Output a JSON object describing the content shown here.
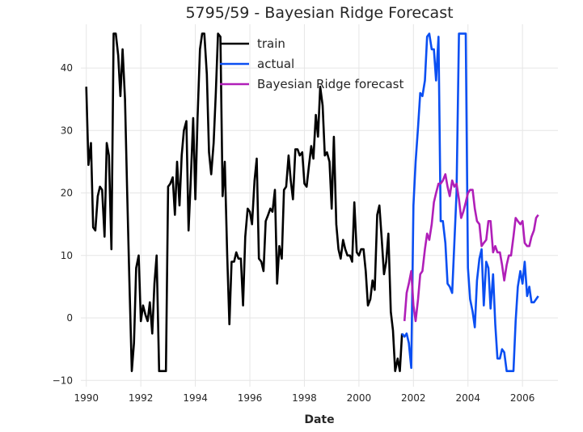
{
  "chart_data": {
    "type": "line",
    "title": "5795/59 - Bayesian Ridge Forecast",
    "xlabel": "Date",
    "ylabel": "",
    "xlim": [
      1989.8,
      2007.3
    ],
    "ylim": [
      -11,
      47
    ],
    "xticks": [
      1990,
      1992,
      1994,
      1996,
      1998,
      2000,
      2002,
      2004,
      2006
    ],
    "yticks": [
      -10,
      0,
      10,
      20,
      30,
      40
    ],
    "grid": true,
    "legend_position": "top-center",
    "series": [
      {
        "name": "train",
        "color": "#000000",
        "points": [
          [
            1990.0,
            37
          ],
          [
            1990.08,
            24.5
          ],
          [
            1990.17,
            28
          ],
          [
            1990.25,
            14.5
          ],
          [
            1990.33,
            14
          ],
          [
            1990.42,
            19.5
          ],
          [
            1990.5,
            21
          ],
          [
            1990.58,
            20.5
          ],
          [
            1990.67,
            13
          ],
          [
            1990.75,
            28
          ],
          [
            1990.83,
            26
          ],
          [
            1990.92,
            11
          ],
          [
            1991.0,
            45.5
          ],
          [
            1991.08,
            45.5
          ],
          [
            1991.17,
            42
          ],
          [
            1991.25,
            35.5
          ],
          [
            1991.33,
            43
          ],
          [
            1991.42,
            35
          ],
          [
            1991.5,
            20
          ],
          [
            1991.58,
            6
          ],
          [
            1991.67,
            -8.5
          ],
          [
            1991.75,
            -4
          ],
          [
            1991.83,
            8
          ],
          [
            1991.92,
            10
          ],
          [
            1992.0,
            -0.5
          ],
          [
            1992.08,
            2
          ],
          [
            1992.17,
            0.5
          ],
          [
            1992.25,
            -0.5
          ],
          [
            1992.33,
            2.5
          ],
          [
            1992.42,
            -2.5
          ],
          [
            1992.5,
            5.5
          ],
          [
            1992.58,
            10
          ],
          [
            1992.67,
            -8.5
          ],
          [
            1992.75,
            -8.5
          ],
          [
            1992.83,
            -8.5
          ],
          [
            1992.92,
            -8.5
          ],
          [
            1993.0,
            21
          ],
          [
            1993.08,
            21.5
          ],
          [
            1993.17,
            22.5
          ],
          [
            1993.25,
            16.5
          ],
          [
            1993.33,
            25
          ],
          [
            1993.42,
            18
          ],
          [
            1993.5,
            26
          ],
          [
            1993.58,
            30
          ],
          [
            1993.67,
            31.5
          ],
          [
            1993.75,
            14
          ],
          [
            1993.83,
            22
          ],
          [
            1993.92,
            32
          ],
          [
            1994.0,
            19
          ],
          [
            1994.08,
            32
          ],
          [
            1994.17,
            43
          ],
          [
            1994.25,
            45.5
          ],
          [
            1994.33,
            45.5
          ],
          [
            1994.42,
            39
          ],
          [
            1994.5,
            26.5
          ],
          [
            1994.58,
            23
          ],
          [
            1994.67,
            28
          ],
          [
            1994.75,
            36
          ],
          [
            1994.83,
            45.5
          ],
          [
            1994.92,
            45
          ],
          [
            1995.0,
            19.5
          ],
          [
            1995.08,
            25
          ],
          [
            1995.17,
            10
          ],
          [
            1995.25,
            -1
          ],
          [
            1995.33,
            9
          ],
          [
            1995.42,
            9
          ],
          [
            1995.5,
            10.5
          ],
          [
            1995.58,
            9.5
          ],
          [
            1995.67,
            9.5
          ],
          [
            1995.75,
            2
          ],
          [
            1995.83,
            13
          ],
          [
            1995.92,
            17.5
          ],
          [
            1996.0,
            17
          ],
          [
            1996.08,
            15
          ],
          [
            1996.17,
            22
          ],
          [
            1996.25,
            25.5
          ],
          [
            1996.33,
            9.5
          ],
          [
            1996.42,
            9
          ],
          [
            1996.5,
            7.5
          ],
          [
            1996.58,
            15.5
          ],
          [
            1996.67,
            16.5
          ],
          [
            1996.75,
            17.5
          ],
          [
            1996.83,
            17
          ],
          [
            1996.92,
            20.5
          ],
          [
            1997.0,
            5.5
          ],
          [
            1997.08,
            11.5
          ],
          [
            1997.17,
            9.5
          ],
          [
            1997.25,
            20.5
          ],
          [
            1997.33,
            21
          ],
          [
            1997.42,
            26
          ],
          [
            1997.5,
            22
          ],
          [
            1997.58,
            19
          ],
          [
            1997.67,
            27
          ],
          [
            1997.75,
            27
          ],
          [
            1997.83,
            26
          ],
          [
            1997.92,
            26.5
          ],
          [
            1998.0,
            21.5
          ],
          [
            1998.08,
            21
          ],
          [
            1998.17,
            24.5
          ],
          [
            1998.25,
            27.5
          ],
          [
            1998.33,
            25.5
          ],
          [
            1998.42,
            32.5
          ],
          [
            1998.5,
            29
          ],
          [
            1998.58,
            37
          ],
          [
            1998.67,
            34
          ],
          [
            1998.75,
            26
          ],
          [
            1998.83,
            26.5
          ],
          [
            1998.92,
            25
          ],
          [
            1999.0,
            17.5
          ],
          [
            1999.08,
            29
          ],
          [
            1999.17,
            15
          ],
          [
            1999.25,
            11
          ],
          [
            1999.33,
            9.5
          ],
          [
            1999.42,
            12.5
          ],
          [
            1999.5,
            11
          ],
          [
            1999.58,
            10
          ],
          [
            1999.67,
            10
          ],
          [
            1999.75,
            9
          ],
          [
            1999.83,
            18.5
          ],
          [
            1999.92,
            10.5
          ],
          [
            2000.0,
            10
          ],
          [
            2000.08,
            11
          ],
          [
            2000.17,
            11
          ],
          [
            2000.25,
            7.5
          ],
          [
            2000.33,
            2
          ],
          [
            2000.42,
            3
          ],
          [
            2000.5,
            6
          ],
          [
            2000.58,
            4.5
          ],
          [
            2000.67,
            16.5
          ],
          [
            2000.75,
            18
          ],
          [
            2000.83,
            13
          ],
          [
            2000.92,
            7
          ],
          [
            2001.0,
            9
          ],
          [
            2001.08,
            13.5
          ],
          [
            2001.17,
            1
          ],
          [
            2001.25,
            -2
          ],
          [
            2001.33,
            -8.5
          ],
          [
            2001.42,
            -6.5
          ],
          [
            2001.5,
            -8.5
          ],
          [
            2001.58,
            -2.5
          ]
        ]
      },
      {
        "name": "actual",
        "color": "#0b4ff2",
        "points": [
          [
            2001.58,
            -2.5
          ],
          [
            2001.67,
            -3
          ],
          [
            2001.75,
            -2.5
          ],
          [
            2001.83,
            -4
          ],
          [
            2001.92,
            -8
          ],
          [
            2002.0,
            18
          ],
          [
            2002.08,
            25
          ],
          [
            2002.17,
            30.5
          ],
          [
            2002.25,
            36
          ],
          [
            2002.33,
            35.5
          ],
          [
            2002.42,
            38
          ],
          [
            2002.5,
            45
          ],
          [
            2002.58,
            45.5
          ],
          [
            2002.67,
            43
          ],
          [
            2002.75,
            43
          ],
          [
            2002.83,
            38
          ],
          [
            2002.92,
            45
          ],
          [
            2003.0,
            15.5
          ],
          [
            2003.08,
            15.5
          ],
          [
            2003.17,
            12
          ],
          [
            2003.25,
            5.5
          ],
          [
            2003.33,
            5
          ],
          [
            2003.42,
            4
          ],
          [
            2003.5,
            12
          ],
          [
            2003.58,
            20
          ],
          [
            2003.67,
            45.5
          ],
          [
            2003.75,
            45.5
          ],
          [
            2003.83,
            45.5
          ],
          [
            2003.92,
            45.5
          ],
          [
            2004.0,
            8
          ],
          [
            2004.08,
            3
          ],
          [
            2004.17,
            1
          ],
          [
            2004.25,
            -1.5
          ],
          [
            2004.33,
            6
          ],
          [
            2004.42,
            9.5
          ],
          [
            2004.5,
            11
          ],
          [
            2004.58,
            2
          ],
          [
            2004.67,
            9
          ],
          [
            2004.75,
            8
          ],
          [
            2004.83,
            1.5
          ],
          [
            2004.92,
            7
          ],
          [
            2005.0,
            -1
          ],
          [
            2005.08,
            -6.5
          ],
          [
            2005.17,
            -6.5
          ],
          [
            2005.25,
            -5
          ],
          [
            2005.33,
            -5.5
          ],
          [
            2005.42,
            -8.5
          ],
          [
            2005.5,
            -8.5
          ],
          [
            2005.58,
            -8.5
          ],
          [
            2005.67,
            -8.5
          ],
          [
            2005.75,
            -0.5
          ],
          [
            2005.83,
            5
          ],
          [
            2005.92,
            7.5
          ],
          [
            2006.0,
            5.5
          ],
          [
            2006.08,
            9
          ],
          [
            2006.17,
            3.5
          ],
          [
            2006.25,
            5
          ],
          [
            2006.33,
            2.5
          ],
          [
            2006.42,
            2.5
          ],
          [
            2006.5,
            3
          ],
          [
            2006.58,
            3.5
          ]
        ]
      },
      {
        "name": "Bayesian Ridge forecast",
        "color": "#b01fb8",
        "points": [
          [
            2001.67,
            -0.5
          ],
          [
            2001.75,
            4
          ],
          [
            2001.83,
            5.5
          ],
          [
            2001.92,
            7.5
          ],
          [
            2002.0,
            2
          ],
          [
            2002.08,
            -0.5
          ],
          [
            2002.17,
            3
          ],
          [
            2002.25,
            7
          ],
          [
            2002.33,
            7.5
          ],
          [
            2002.42,
            11
          ],
          [
            2002.5,
            13.5
          ],
          [
            2002.58,
            12.5
          ],
          [
            2002.67,
            15
          ],
          [
            2002.75,
            18.5
          ],
          [
            2002.83,
            20
          ],
          [
            2002.92,
            21.5
          ],
          [
            2003.0,
            21.5
          ],
          [
            2003.08,
            22
          ],
          [
            2003.17,
            23
          ],
          [
            2003.25,
            21
          ],
          [
            2003.33,
            19.5
          ],
          [
            2003.42,
            22
          ],
          [
            2003.5,
            21
          ],
          [
            2003.58,
            21.5
          ],
          [
            2003.67,
            19
          ],
          [
            2003.75,
            16
          ],
          [
            2003.83,
            17
          ],
          [
            2003.92,
            18.5
          ],
          [
            2004.0,
            20
          ],
          [
            2004.08,
            20.5
          ],
          [
            2004.17,
            20.5
          ],
          [
            2004.25,
            17.5
          ],
          [
            2004.33,
            15.5
          ],
          [
            2004.42,
            15
          ],
          [
            2004.5,
            11.5
          ],
          [
            2004.58,
            12
          ],
          [
            2004.67,
            12.5
          ],
          [
            2004.75,
            15.5
          ],
          [
            2004.83,
            15.5
          ],
          [
            2004.92,
            10.5
          ],
          [
            2005.0,
            11.5
          ],
          [
            2005.08,
            10.5
          ],
          [
            2005.17,
            10.5
          ],
          [
            2005.25,
            8.5
          ],
          [
            2005.33,
            6
          ],
          [
            2005.42,
            8.5
          ],
          [
            2005.5,
            10
          ],
          [
            2005.58,
            10
          ],
          [
            2005.67,
            13
          ],
          [
            2005.75,
            16
          ],
          [
            2005.83,
            15.5
          ],
          [
            2005.92,
            15
          ],
          [
            2006.0,
            15.5
          ],
          [
            2006.08,
            12
          ],
          [
            2006.17,
            11.5
          ],
          [
            2006.25,
            11.5
          ],
          [
            2006.33,
            13
          ],
          [
            2006.42,
            14
          ],
          [
            2006.5,
            16
          ],
          [
            2006.58,
            16.5
          ]
        ]
      }
    ]
  }
}
